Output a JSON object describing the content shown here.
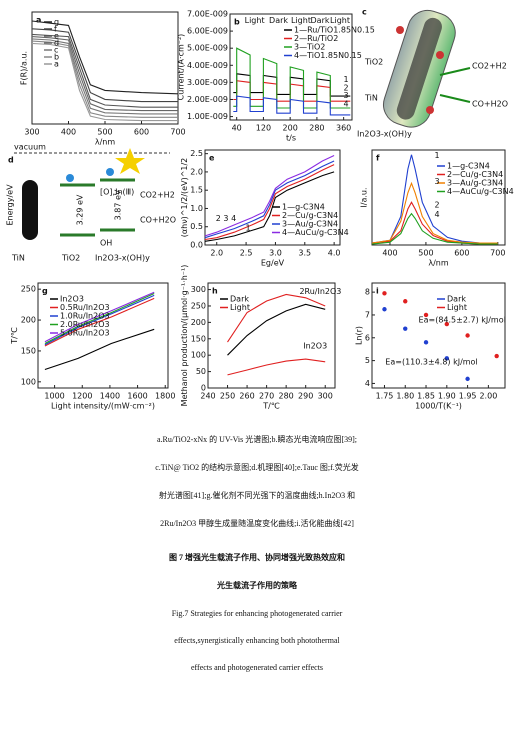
{
  "chart_data": [
    {
      "type": "line",
      "label": "a",
      "xlabel": "λ/nm",
      "ylabel": "F(R)/a.u.",
      "x": [
        300,
        350,
        400,
        430,
        460,
        500,
        600,
        700
      ],
      "xlim": [
        300,
        700
      ],
      "xticks": [
        300,
        400,
        500,
        600,
        700
      ],
      "ylim": [
        0,
        1
      ],
      "yticks": [],
      "legend": "upper left",
      "series": [
        {
          "name": "g",
          "color": "#222",
          "values": [
            0.92,
            0.9,
            0.88,
            0.6,
            0.35,
            0.3,
            0.28,
            0.27
          ]
        },
        {
          "name": "f",
          "color": "#444",
          "values": [
            0.85,
            0.84,
            0.82,
            0.55,
            0.28,
            0.22,
            0.2,
            0.2
          ]
        },
        {
          "name": "e",
          "color": "#555",
          "values": [
            0.8,
            0.79,
            0.78,
            0.5,
            0.22,
            0.17,
            0.15,
            0.15
          ]
        },
        {
          "name": "d",
          "color": "#666",
          "values": [
            0.78,
            0.77,
            0.75,
            0.45,
            0.18,
            0.13,
            0.12,
            0.12
          ]
        },
        {
          "name": "c",
          "color": "#777",
          "values": [
            0.76,
            0.75,
            0.72,
            0.4,
            0.14,
            0.1,
            0.09,
            0.09
          ]
        },
        {
          "name": "b",
          "color": "#888",
          "values": [
            0.74,
            0.73,
            0.7,
            0.35,
            0.1,
            0.07,
            0.06,
            0.06
          ]
        },
        {
          "name": "a",
          "color": "#999",
          "values": [
            0.72,
            0.71,
            0.68,
            0.3,
            0.07,
            0.04,
            0.03,
            0.03
          ]
        }
      ]
    },
    {
      "type": "line",
      "label": "b",
      "xlabel": "t/s",
      "ylabel": "Current/(A·cm⁻²)",
      "x": [
        30,
        40,
        40,
        80,
        80,
        120,
        120,
        160,
        160,
        200,
        200,
        240,
        240,
        280,
        280,
        320,
        320,
        360,
        360,
        380
      ],
      "xlim": [
        20,
        385
      ],
      "xticks": [
        40,
        120,
        200,
        280,
        360
      ],
      "ylim": [
        8e-10,
        7e-09
      ],
      "yticks": [
        {
          "value": 1e-09,
          "label": "1.00E-009"
        },
        {
          "value": 2e-09,
          "label": "2.00E-009"
        },
        {
          "value": 3e-09,
          "label": "3.00E-009"
        },
        {
          "value": 4e-09,
          "label": "4.00E-009"
        },
        {
          "value": 5e-09,
          "label": "5.00E-009"
        },
        {
          "value": 6e-09,
          "label": "6.00E-009"
        },
        {
          "value": 7e-09,
          "label": "7.00E-009"
        }
      ],
      "legend": "upper right",
      "annotations": [
        "Light",
        "Dark",
        "Light",
        "Dark",
        "Light",
        "1",
        "2",
        "3",
        "4"
      ],
      "series": [
        {
          "name": "1—Ru/TiO1.85N0.15",
          "color": "#000",
          "values": [
            2.4e-09,
            2.4e-09,
            3.5e-09,
            3.4e-09,
            2.4e-09,
            2.4e-09,
            3.4e-09,
            3.3e-09,
            2.3e-09,
            2.3e-09,
            3.3e-09,
            3.2e-09,
            2.3e-09,
            2.3e-09,
            3.2e-09,
            3.1e-09,
            2.2e-09,
            2.2e-09,
            2.2e-09,
            2.2e-09
          ]
        },
        {
          "name": "2—Ru/TiO2",
          "color": "#e02020",
          "values": [
            2e-09,
            2e-09,
            3.1e-09,
            3e-09,
            2e-09,
            2e-09,
            3e-09,
            2.9e-09,
            1.9e-09,
            1.9e-09,
            2.9e-09,
            2.8e-09,
            1.9e-09,
            1.9e-09,
            2.8e-09,
            2.7e-09,
            1.9e-09,
            1.9e-09,
            1.9e-09,
            1.9e-09
          ]
        },
        {
          "name": "3—TiO2",
          "color": "#20a020",
          "values": [
            1.6e-09,
            1.6e-09,
            5e-09,
            4.6e-09,
            1.6e-09,
            1.6e-09,
            4.4e-09,
            4.1e-09,
            1.5e-09,
            1.5e-09,
            3.9e-09,
            3.7e-09,
            1.5e-09,
            1.5e-09,
            3.6e-09,
            3.4e-09,
            1.5e-09,
            1.5e-09,
            1.5e-09,
            1.5e-09
          ]
        },
        {
          "name": "4—TiO1.85N0.15",
          "color": "#2040d0",
          "values": [
            1.3e-09,
            1.3e-09,
            2.2e-09,
            2.1e-09,
            1.3e-09,
            1.3e-09,
            2.1e-09,
            2e-09,
            1.2e-09,
            1.2e-09,
            2e-09,
            1.9e-09,
            1.2e-09,
            1.2e-09,
            1.9e-09,
            1.8e-09,
            1.1e-09,
            1.1e-09,
            1.1e-09,
            1.1e-09
          ]
        }
      ]
    },
    {
      "type": "line",
      "label": "e",
      "xlabel": "Eg/eV",
      "ylabel": "(αhν)^1/2/(eV)^1/2",
      "x": [
        1.8,
        2.0,
        2.3,
        2.6,
        2.8,
        2.9,
        3.0,
        3.2,
        3.5,
        3.8,
        4.0
      ],
      "xlim": [
        1.8,
        4.1
      ],
      "xticks": [
        {
          "value": 2,
          "label": "2.0"
        },
        2.5,
        {
          "value": 3,
          "label": "3.0"
        },
        3.5,
        {
          "value": 4,
          "label": "4.0"
        }
      ],
      "ylim": [
        0,
        2.6
      ],
      "yticks": [
        {
          "value": 0,
          "label": "0.0"
        },
        0.5,
        {
          "value": 1,
          "label": "1.0"
        },
        1.5,
        {
          "value": 2,
          "label": "2.0"
        },
        2.5
      ],
      "legend": "lower right",
      "annotations": [
        "2 3 4",
        "1"
      ],
      "series": [
        {
          "name": "1—g-C3N4",
          "color": "#000",
          "values": [
            0.1,
            0.15,
            0.25,
            0.4,
            0.5,
            0.8,
            1.3,
            1.5,
            1.7,
            1.9,
            2.0
          ]
        },
        {
          "name": "2—Cu/g-C3N4",
          "color": "#e02020",
          "values": [
            0.15,
            0.2,
            0.35,
            0.55,
            0.7,
            1.0,
            1.4,
            1.6,
            1.8,
            2.05,
            2.2
          ]
        },
        {
          "name": "3—Au/g-C3N4",
          "color": "#2040d0",
          "values": [
            0.2,
            0.3,
            0.45,
            0.65,
            0.8,
            1.1,
            1.5,
            1.7,
            1.9,
            2.15,
            2.3
          ]
        },
        {
          "name": "4—AuCu/g-C3N4",
          "color": "#8a2be2",
          "values": [
            0.25,
            0.35,
            0.55,
            0.75,
            0.9,
            1.2,
            1.55,
            1.8,
            2.0,
            2.3,
            2.45
          ]
        }
      ]
    },
    {
      "type": "line",
      "label": "f",
      "xlabel": "λ/nm",
      "ylabel": "I/a.u.",
      "x": [
        350,
        400,
        430,
        450,
        460,
        470,
        490,
        520,
        560,
        600,
        650,
        700
      ],
      "xlim": [
        350,
        720
      ],
      "xticks": [
        400,
        500,
        600,
        700
      ],
      "ylim": [
        0,
        1
      ],
      "yticks": [],
      "legend": "upper right",
      "annotations": [
        "1",
        "2",
        "3",
        "4"
      ],
      "series": [
        {
          "name": "1—g-C3N4",
          "color": "#2040d0",
          "values": [
            0.02,
            0.05,
            0.3,
            0.8,
            0.95,
            0.8,
            0.45,
            0.2,
            0.08,
            0.04,
            0.02,
            0.02
          ]
        },
        {
          "name": "2—Cu/g-C3N4",
          "color": "#e02020",
          "values": [
            0.02,
            0.04,
            0.15,
            0.38,
            0.45,
            0.38,
            0.22,
            0.1,
            0.04,
            0.02,
            0.01,
            0.01
          ]
        },
        {
          "name": "3—Au/g-C3N4",
          "color": "#f08000",
          "values": [
            0.02,
            0.05,
            0.25,
            0.55,
            0.65,
            0.55,
            0.3,
            0.12,
            0.05,
            0.03,
            0.02,
            0.02
          ]
        },
        {
          "name": "4—AuCu/g-C3N4",
          "color": "#20a020",
          "values": [
            0.01,
            0.03,
            0.12,
            0.28,
            0.33,
            0.28,
            0.15,
            0.07,
            0.03,
            0.02,
            0.01,
            0.01
          ]
        }
      ]
    },
    {
      "type": "line",
      "label": "g",
      "xlabel": "Light intensity/(mW·cm⁻²)",
      "ylabel": "T/℃",
      "x": [
        930,
        1170,
        1410,
        1720
      ],
      "xlim": [
        880,
        1820
      ],
      "xticks": [
        1000,
        1200,
        1400,
        1600,
        1800
      ],
      "ylim": [
        90,
        260
      ],
      "yticks": [
        100,
        150,
        200,
        250
      ],
      "legend": "upper left",
      "series": [
        {
          "name": "In2O3",
          "color": "#000",
          "values": [
            120,
            138,
            162,
            185
          ]
        },
        {
          "name": "0.5Ru/In2O3",
          "color": "#e02020",
          "values": [
            158,
            185,
            205,
            235
          ]
        },
        {
          "name": "1.0Ru/In2O3",
          "color": "#2040d0",
          "values": [
            160,
            188,
            210,
            240
          ]
        },
        {
          "name": "2.0Ru/In2O3",
          "color": "#20a020",
          "values": [
            162,
            190,
            212,
            243
          ]
        },
        {
          "name": "5.0Ru/In2O3",
          "color": "#8a2be2",
          "values": [
            165,
            193,
            215,
            245
          ]
        }
      ]
    },
    {
      "type": "line",
      "label": "h",
      "xlabel": "T/℃",
      "ylabel": "Methanol production/(μmol·g⁻¹·h⁻¹)",
      "x": [
        250,
        260,
        270,
        280,
        290,
        300
      ],
      "xlim": [
        240,
        305
      ],
      "xticks": [
        240,
        250,
        260,
        270,
        280,
        290,
        300
      ],
      "ylim": [
        0,
        320
      ],
      "yticks": [
        0,
        50,
        100,
        150,
        200,
        250,
        300
      ],
      "legend": "upper left",
      "annotations": [
        "2Ru/In2O3",
        "In2O3"
      ],
      "series": [
        {
          "name": "Dark",
          "color": "#000",
          "values": [
            100,
            160,
            205,
            235,
            255,
            240
          ]
        },
        {
          "name": "Light",
          "color": "#e02020",
          "values": [
            140,
            230,
            265,
            285,
            275,
            250
          ]
        },
        {
          "color": "#e02020",
          "values": [
            40,
            55,
            70,
            82,
            88,
            80
          ]
        }
      ]
    },
    {
      "type": "scatter",
      "label": "i",
      "xlabel": "1000/T(K⁻¹)",
      "ylabel": "Ln(r)",
      "xlim": [
        1.72,
        2.04
      ],
      "xticks": [
        1.75,
        {
          "value": 1.8,
          "label": "1.80"
        },
        1.85,
        {
          "value": 1.9,
          "label": "1.90"
        },
        1.95,
        {
          "value": 2,
          "label": "2.00"
        }
      ],
      "ylim": [
        3.8,
        8.4
      ],
      "yticks": [
        4,
        5,
        6,
        7,
        8
      ],
      "legend": "upper right",
      "annotations": [
        "Ea=(84.5±2.7) kJ/mol",
        "Ea=(110.3±4.8) kJ/mol"
      ],
      "series": [
        {
          "name": "Dark",
          "color": "#2040d0",
          "x": [
            1.75,
            1.8,
            1.85,
            1.9,
            1.95
          ],
          "values": [
            7.25,
            6.4,
            5.8,
            5.1,
            4.2
          ]
        },
        {
          "name": "Light",
          "color": "#e02020",
          "x": [
            1.75,
            1.8,
            1.85,
            1.9,
            1.95,
            2.02
          ],
          "values": [
            7.95,
            7.6,
            7.0,
            6.6,
            6.1,
            5.2
          ]
        }
      ]
    }
  ],
  "diagrams": {
    "c": {
      "label": "c",
      "texts": [
        "TiO2",
        "TiN",
        "CO2+H2",
        "CO+H2O",
        "In2O3-x(OH)y"
      ]
    },
    "d": {
      "label": "d",
      "texts": [
        "vacuum",
        "Energy/eV",
        "TiN",
        "TiO2",
        "In2O3-x(OH)y",
        "3.29 eV",
        "3.87 eV",
        "OH",
        "CO2+H2",
        "CO+H2O",
        "[O],In(Ⅲ)"
      ]
    }
  },
  "caption": {
    "lines": [
      "a.Ru/TiO2-xNx 的 UV-Vis 光谱图;b.瞬态光电流响应图[39];",
      "c.TiN@ TiO2 的结构示意图;d.机理图[40];e.Tauc 图;f.荧光发",
      "射光谱图[41];g.催化剂不同光强下的温度曲线;h.In2O3 和",
      "2Ru/In2O3 甲醇生成量随温度变化曲线;i.活化能曲线[42]"
    ],
    "title_cn": [
      "图 7   增强光生载流子作用、协同增强光致热效应和",
      "光生载流子作用的策略"
    ],
    "title_en": [
      "Fig.7    Strategies for enhancing photogenerated carrier",
      "effects,synergistically enhancing both photothermal",
      "effects and photogenerated carrier effects"
    ]
  }
}
